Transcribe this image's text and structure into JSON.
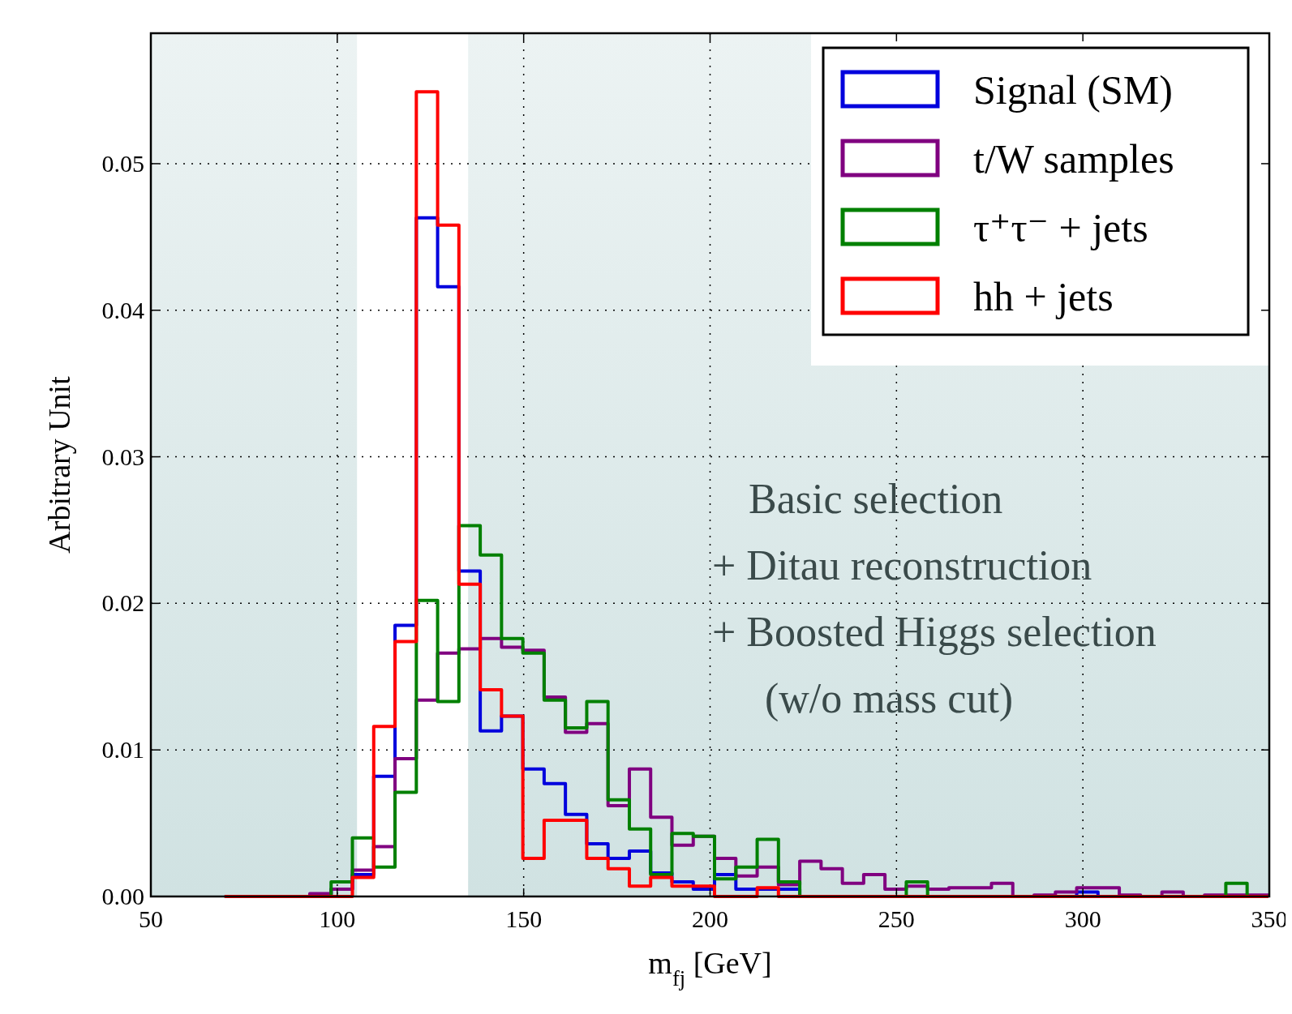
{
  "chart_data": {
    "type": "histogram",
    "xlabel": "m$_{fj}$ [GeV]",
    "ylabel": "Arbitrary Unit",
    "bins": [
      69.78,
      75.49,
      81.21,
      86.92,
      92.64,
      98.35,
      104.06,
      109.78,
      115.49,
      121.21,
      126.92,
      132.63,
      138.35,
      144.06,
      149.78,
      155.49,
      161.2,
      166.92,
      172.63,
      178.35,
      184.06,
      189.77,
      195.49,
      201.2,
      206.92,
      212.63,
      218.34,
      224.06,
      229.77,
      235.49,
      241.2,
      246.91,
      252.63,
      258.34,
      264.06,
      269.77,
      275.48,
      281.2,
      286.91,
      292.63,
      298.34,
      304.05,
      309.77,
      315.48,
      321.2,
      326.91,
      332.62,
      338.34,
      344.05,
      349.77
    ],
    "series": [
      {
        "name": "Signal (SM)",
        "color": "#0000dd",
        "values": [
          0,
          0,
          0,
          0,
          0,
          0.0005,
          0.0015,
          0.0082,
          0.0185,
          0.0463,
          0.0416,
          0.0222,
          0.0113,
          0.0123,
          0.0087,
          0.0077,
          0.0056,
          0.0036,
          0.0026,
          0.0031,
          0.0016,
          0.001,
          0.0005,
          0.0015,
          0.0005,
          0.0005,
          0.0005,
          0,
          0,
          0,
          0,
          0,
          0,
          0,
          0,
          0,
          0,
          0,
          0,
          0,
          0.0003,
          0,
          0,
          0,
          0,
          0,
          0,
          0,
          0
        ]
      },
      {
        "name": "t/W samples",
        "color": "#800080",
        "values": [
          0,
          0,
          0,
          0,
          0.0002,
          0.0005,
          0.0018,
          0.0034,
          0.0094,
          0.0134,
          0.0166,
          0.0169,
          0.0176,
          0.017,
          0.0168,
          0.0136,
          0.0112,
          0.0118,
          0.0062,
          0.0087,
          0.0054,
          0.0035,
          0.0041,
          0.0026,
          0.0014,
          0.002,
          0.0008,
          0.0024,
          0.0019,
          0.0009,
          0.0015,
          0.0005,
          0.0007,
          0.0005,
          0.0006,
          0.0006,
          0.0009,
          0,
          0.0001,
          0.0003,
          0.0006,
          0.0006,
          0.0001,
          0,
          0.0003,
          0,
          0.0001,
          0.0001,
          0.0001
        ]
      },
      {
        "name": "τ⁺τ⁻ + jets",
        "color": "#008000",
        "values": [
          0,
          0,
          0,
          0,
          0,
          0.001,
          0.004,
          0.002,
          0.0071,
          0.0202,
          0.0133,
          0.0253,
          0.0233,
          0.0176,
          0.0166,
          0.0134,
          0.0115,
          0.0133,
          0.0066,
          0.0046,
          0.0015,
          0.0043,
          0.0041,
          0.0012,
          0.002,
          0.0039,
          0.001,
          0,
          0,
          0,
          0,
          0,
          0.001,
          0,
          0,
          0,
          0,
          0,
          0,
          0,
          0,
          0,
          0,
          0,
          0,
          0,
          0,
          0.0009,
          0
        ]
      },
      {
        "name": "hh + jets",
        "color": "#ff0000",
        "values": [
          0,
          0,
          0,
          0,
          0,
          0,
          0.0013,
          0.0116,
          0.0174,
          0.0549,
          0.0458,
          0.0213,
          0.0141,
          0.0123,
          0.0026,
          0.0052,
          0.0052,
          0.0026,
          0.0019,
          0.0007,
          0.0013,
          0.0007,
          0.0007,
          0,
          0,
          0.0006,
          0,
          0,
          0,
          0,
          0,
          0,
          0,
          0,
          0,
          0,
          0,
          0,
          0,
          0,
          0,
          0,
          0,
          0,
          0,
          0,
          0,
          0,
          0
        ]
      }
    ],
    "xlim": [
      50,
      350
    ],
    "xticks": [
      50,
      100,
      150,
      200,
      250,
      300,
      350
    ],
    "ylim": [
      0,
      0.0589
    ],
    "yticks": [
      {
        "value": 0,
        "label": "0.00"
      },
      {
        "value": 0.01,
        "label": "0.01"
      },
      {
        "value": 0.02,
        "label": "0.02"
      },
      {
        "value": 0.03,
        "label": "0.03"
      },
      {
        "value": 0.04,
        "label": "0.04"
      },
      {
        "value": 0.05,
        "label": "0.05"
      }
    ],
    "bands": [
      {
        "axis": "x",
        "from": 50,
        "to": 105.3,
        "color": "#d0e2e2"
      },
      {
        "axis": "x",
        "from": 135.1,
        "to": 350,
        "color": "#d0e2e2"
      }
    ],
    "annotations": [
      "Basic selection\n+ Ditau reconstruction\n+ Boosted Higgs selection\n(w/o mass cut)"
    ],
    "grid": true,
    "legend": "top right"
  }
}
